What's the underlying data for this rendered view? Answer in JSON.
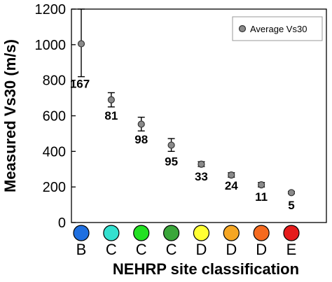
{
  "chart_data": {
    "type": "scatter",
    "ylabel": "Measured Vs30 (m/s)",
    "xlabel": "NEHRP site classification",
    "ylim": [
      0,
      1200
    ],
    "yticks": [
      0,
      200,
      400,
      600,
      800,
      1000,
      1200
    ],
    "grid": false,
    "legend": {
      "position": "top-right",
      "label": "Average Vs30"
    },
    "categories": [
      "B",
      "C",
      "C",
      "C",
      "D",
      "D",
      "D",
      "E"
    ],
    "category_colors": [
      "#1f6fe0",
      "#33e0cf",
      "#22e022",
      "#3aa63a",
      "#ffff33",
      "#f5a623",
      "#f56a1f",
      "#e51b1b"
    ],
    "series": [
      {
        "name": "Average Vs30",
        "values": [
          1005,
          690,
          553,
          435,
          328,
          267,
          212,
          168
        ],
        "err_low": [
          820,
          650,
          515,
          400,
          315,
          255,
          200,
          162
        ],
        "err_high": [
          1200,
          730,
          592,
          472,
          342,
          280,
          225,
          175
        ],
        "counts": [
          "167",
          "81",
          "98",
          "95",
          "33",
          "24",
          "11",
          "5"
        ]
      }
    ]
  }
}
